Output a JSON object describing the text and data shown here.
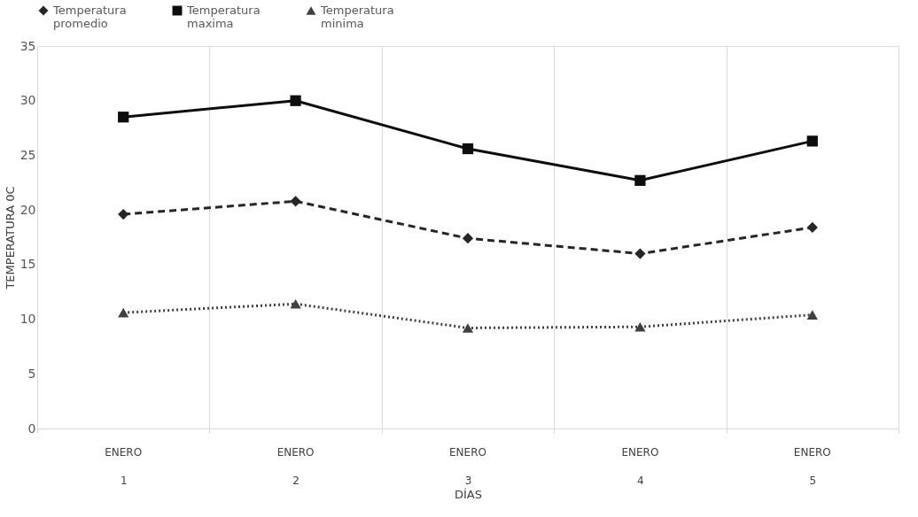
{
  "chart_data": {
    "type": "line",
    "xlabel": "DÍAS",
    "ylabel": "TEMPERATURA 0C",
    "categories": [
      "1",
      "2",
      "3",
      "4",
      "5"
    ],
    "annotations": [
      "ENERO",
      "ENERO",
      "ENERO",
      "ENERO",
      "ENERO"
    ],
    "series": [
      {
        "name": "Temperatura promedio",
        "color": "#262626",
        "marker": "diamond",
        "line_style": "dashed",
        "values": [
          19.6,
          20.8,
          17.4,
          16.0,
          18.4
        ]
      },
      {
        "name": "Temperatura maxima",
        "color": "#0d0d0d",
        "marker": "square",
        "line_style": "solid",
        "values": [
          28.5,
          30.0,
          25.6,
          22.7,
          26.3
        ]
      },
      {
        "name": "Temperatura minima",
        "color": "#404040",
        "marker": "triangle",
        "line_style": "dotted",
        "values": [
          10.6,
          11.4,
          9.2,
          9.3,
          10.4
        ]
      }
    ],
    "ylim": [
      0,
      35
    ],
    "yticks": [
      0,
      5,
      10,
      15,
      20,
      25,
      30,
      35
    ],
    "grid": "x",
    "legend": "top"
  }
}
